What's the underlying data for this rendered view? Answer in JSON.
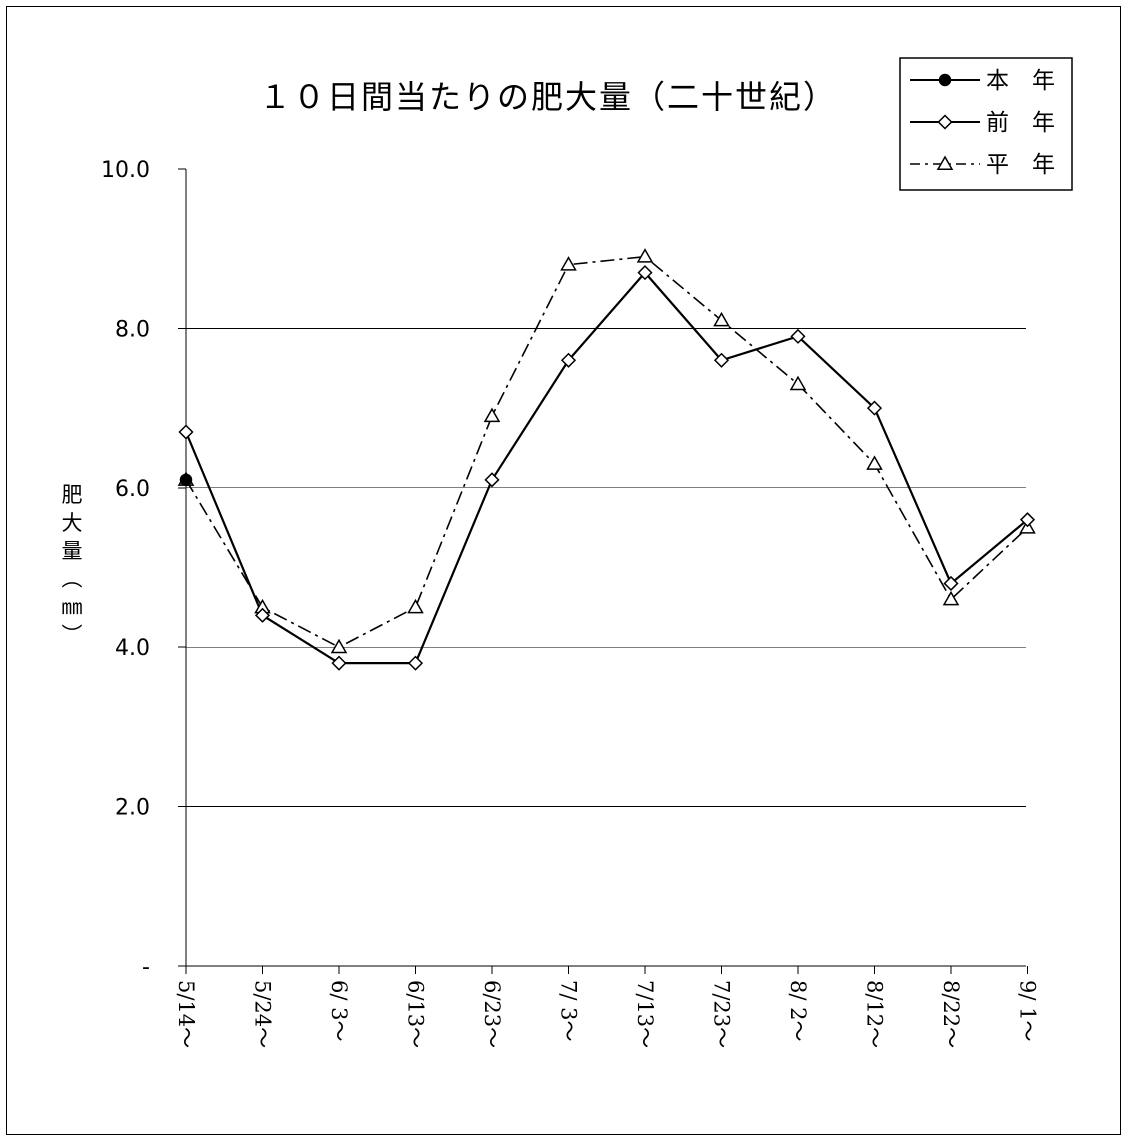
{
  "chart_data": {
    "type": "line",
    "title": "１０日間当たりの肥大量（二十世紀）",
    "ylabel_chars": [
      "肥",
      "大",
      "量",
      "（",
      "㎜",
      "）"
    ],
    "ylim": [
      0,
      10
    ],
    "yticks": [
      {
        "value": 0,
        "label": "-"
      },
      {
        "value": 2,
        "label": "2.0"
      },
      {
        "value": 4,
        "label": "4.0"
      },
      {
        "value": 6,
        "label": "6.0"
      },
      {
        "value": 8,
        "label": "8.0"
      },
      {
        "value": 10,
        "label": "10.0"
      }
    ],
    "grid_values": [
      2,
      4,
      6,
      8
    ],
    "categories": [
      "5/14～",
      "5/24～",
      "6/ 3～",
      "6/13～",
      "6/23～",
      "7/ 3～",
      "7/13～",
      "7/23～",
      "8/ 2～",
      "8/12～",
      "8/22～",
      "9/ 1～"
    ],
    "legend_position": "top-right",
    "series": [
      {
        "name": "本　年",
        "marker": "circle",
        "line": "solid",
        "color": "#000000",
        "values": [
          6.1,
          null,
          null,
          null,
          null,
          null,
          null,
          null,
          null,
          null,
          null,
          null
        ]
      },
      {
        "name": "前　年",
        "marker": "diamond",
        "line": "solid",
        "color": "#000000",
        "values": [
          6.7,
          4.4,
          3.8,
          3.8,
          6.1,
          7.6,
          8.7,
          7.6,
          7.9,
          7.0,
          4.8,
          5.6
        ]
      },
      {
        "name": "平　年",
        "marker": "triangle",
        "line": "dashdot",
        "color": "#000000",
        "values": [
          6.1,
          4.5,
          4.0,
          4.5,
          6.9,
          8.8,
          8.9,
          8.1,
          7.3,
          6.3,
          4.6,
          5.5
        ]
      }
    ]
  }
}
